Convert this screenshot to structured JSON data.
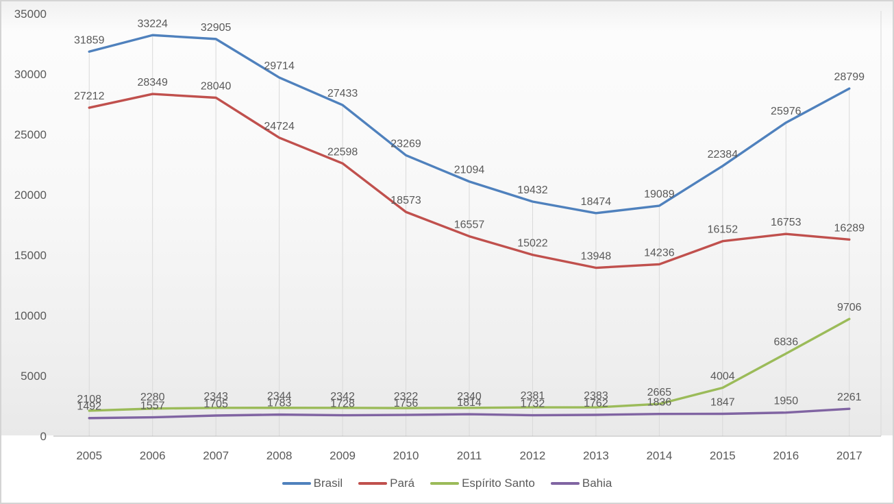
{
  "chart_data": {
    "type": "line",
    "title": "",
    "xlabel": "",
    "ylabel": "",
    "categories": [
      "2005",
      "2006",
      "2007",
      "2008",
      "2009",
      "2010",
      "2011",
      "2012",
      "2013",
      "2014",
      "2015",
      "2016",
      "2017"
    ],
    "series": [
      {
        "name": "Brasil",
        "color": "#4F81BD",
        "values": [
          31859,
          33224,
          32905,
          29714,
          27433,
          23269,
          21094,
          19432,
          18474,
          19089,
          22384,
          25976,
          28799
        ]
      },
      {
        "name": "Pará",
        "color": "#C0504D",
        "values": [
          27212,
          28349,
          28040,
          24724,
          22598,
          18573,
          16557,
          15022,
          13948,
          14236,
          16152,
          16753,
          16289
        ]
      },
      {
        "name": "Espírito Santo",
        "color": "#9BBB59",
        "values": [
          2108,
          2280,
          2343,
          2344,
          2342,
          2322,
          2340,
          2381,
          2383,
          2665,
          4004,
          6836,
          9706
        ]
      },
      {
        "name": "Bahia",
        "color": "#8064A2",
        "values": [
          1492,
          1557,
          1705,
          1783,
          1728,
          1756,
          1814,
          1732,
          1762,
          1836,
          1847,
          1950,
          2261
        ]
      }
    ],
    "ylim": [
      0,
      35000
    ],
    "y_ticks": [
      0,
      5000,
      10000,
      15000,
      20000,
      25000,
      30000,
      35000
    ],
    "data_labels": true,
    "legend_position": "bottom",
    "grid": "drop-lines",
    "colors": {
      "tick_text": "#595959",
      "data_label_text": "#595959",
      "axis_line": "#bfbfbf",
      "drop_line": "#d9d9d9",
      "frame_border": "#d4d4d4"
    }
  }
}
